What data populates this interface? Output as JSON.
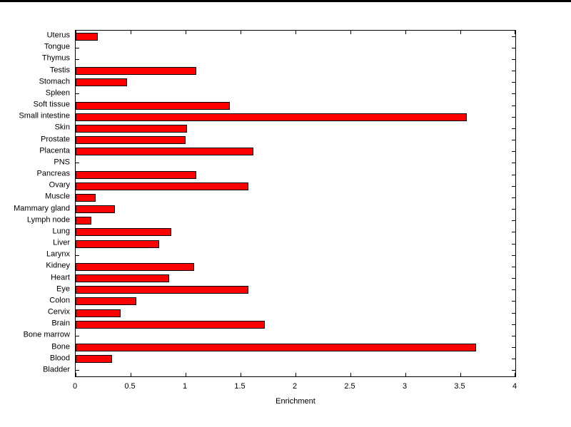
{
  "figure": {
    "background": "#ffffff"
  },
  "chart_data": {
    "type": "bar",
    "orientation": "horizontal",
    "title": "",
    "xlabel": "Enrichment",
    "ylabel": "",
    "xlim": [
      0,
      4
    ],
    "xticks": [
      0,
      0.5,
      1,
      1.5,
      2,
      2.5,
      3,
      3.5,
      4
    ],
    "xtick_labels": [
      "0",
      "0.5",
      "1",
      "1.5",
      "2",
      "2.5",
      "3",
      "3.5",
      "4"
    ],
    "grid": false,
    "legend": null,
    "bar_color": "#ff0000",
    "bar_edge_color": "#000000",
    "categories": [
      "Uterus",
      "Tongue",
      "Thymus",
      "Testis",
      "Stomach",
      "Spleen",
      "Soft tissue",
      "Small intestine",
      "Skin",
      "Prostate",
      "Placenta",
      "PNS",
      "Pancreas",
      "Ovary",
      "Muscle",
      "Mammary gland",
      "Lymph node",
      "Lung",
      "Liver",
      "Larynx",
      "Kidney",
      "Heart",
      "Eye",
      "Colon",
      "Cervix",
      "Brain",
      "Bone marrow",
      "Bone",
      "Blood",
      "Bladder"
    ],
    "values": [
      0.2,
      0,
      0,
      1.1,
      0.47,
      0,
      1.4,
      3.56,
      1.01,
      1.0,
      1.62,
      0,
      1.1,
      1.57,
      0.18,
      0.36,
      0.14,
      0.87,
      0.76,
      0,
      1.08,
      0.85,
      1.57,
      0.55,
      0.41,
      1.72,
      0,
      3.64,
      0.33,
      0
    ]
  }
}
